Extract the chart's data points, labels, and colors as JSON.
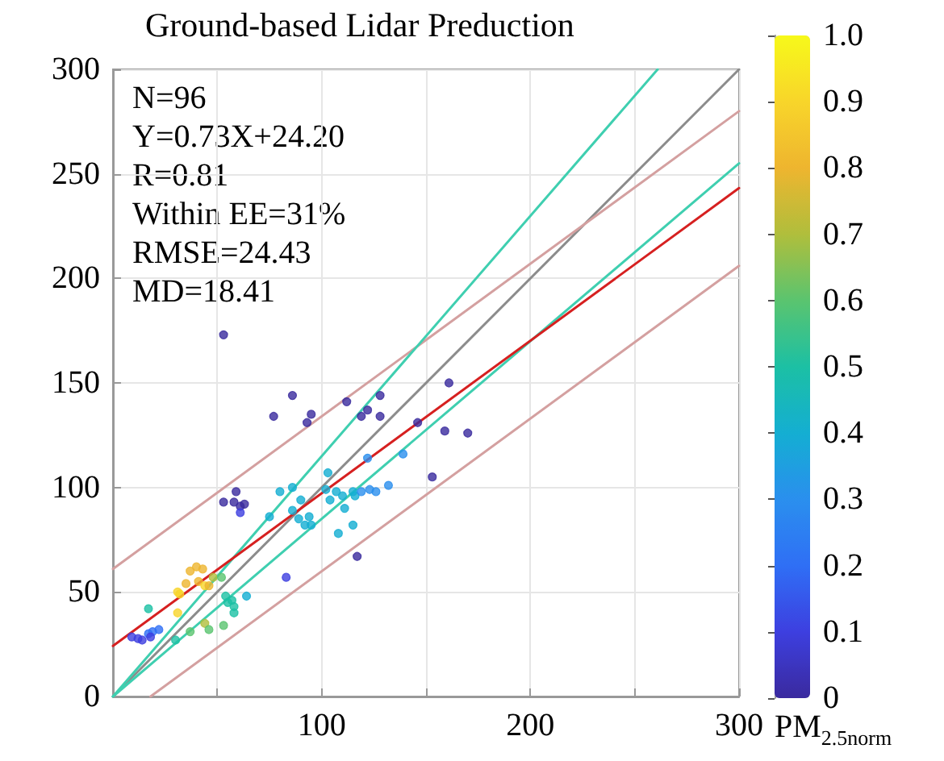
{
  "chart_data": {
    "type": "scatter",
    "title": "Ground-based Lidar Preduction",
    "clabel": "PM$_{2.5norm}$",
    "annotations": [
      "N=96",
      "Y=0.73X+24.20",
      "R=0.81",
      "Within EE=31%",
      "RMSE=24.43",
      "MD=18.41"
    ],
    "xlim": [
      0,
      300
    ],
    "ylim": [
      0,
      300
    ],
    "xticks": [
      {
        "value": 50,
        "label": null
      },
      100,
      {
        "value": 150,
        "label": null
      },
      200,
      {
        "value": 250,
        "label": null
      },
      300
    ],
    "yticks": [
      0,
      50,
      100,
      150,
      200,
      250,
      300
    ],
    "clim": [
      0,
      1
    ],
    "cticks": [
      0,
      0.1,
      0.2,
      0.3,
      0.4,
      0.5,
      0.6,
      0.7,
      0.8,
      0.9,
      {
        "value": 1,
        "label": "1.0"
      }
    ],
    "grid": true,
    "marker": "circle",
    "series": [
      {
        "type": "line",
        "color": "#8c8c8c",
        "x": [
          0,
          300
        ],
        "values": [
          0,
          300
        ],
        "marker": "none",
        "line_style": "solid"
      },
      {
        "type": "line",
        "color": "#d4a0a0",
        "x": [
          0,
          300
        ],
        "values": [
          61,
          280
        ],
        "marker": "none",
        "line_style": "solid"
      },
      {
        "type": "line",
        "color": "#d4a0a0",
        "x": [
          18,
          300
        ],
        "values": [
          0,
          206
        ],
        "marker": "none",
        "line_style": "solid"
      },
      {
        "type": "line",
        "color": "#3fcfb0",
        "x": [
          0,
          261
        ],
        "values": [
          0,
          300
        ],
        "marker": "none",
        "line_style": "solid"
      },
      {
        "type": "line",
        "color": "#3fcfb0",
        "x": [
          0,
          300
        ],
        "values": [
          0,
          255
        ],
        "marker": "none",
        "line_style": "solid"
      },
      {
        "type": "line",
        "color": "#d62020",
        "x": [
          0,
          300
        ],
        "values": [
          24.2,
          243.2
        ],
        "marker": "none",
        "line_style": "solid"
      },
      {
        "x": [
          9,
          12,
          14,
          17,
          19,
          22,
          18,
          17,
          31,
          32,
          35,
          37,
          40,
          43,
          41,
          44,
          46,
          48,
          52,
          31,
          44,
          46,
          37,
          53,
          54,
          55,
          57,
          58,
          58,
          64,
          30,
          53,
          59,
          58,
          61,
          63,
          61,
          83,
          75,
          80,
          86,
          86,
          89,
          92,
          94,
          90,
          95,
          103,
          102,
          104,
          107,
          110,
          111,
          115,
          116,
          119,
          123,
          126,
          132,
          139,
          108,
          115,
          117,
          153,
          77,
          86,
          95,
          93,
          112,
          119,
          122,
          128,
          128,
          146,
          161,
          159,
          170,
          122,
          53
        ],
        "values": [
          28.5,
          27.7,
          27,
          30,
          31,
          32,
          28.5,
          42,
          50,
          49,
          54,
          60,
          62,
          61,
          55,
          53,
          53,
          57,
          57,
          40,
          35,
          32,
          31,
          34,
          48,
          45,
          46,
          43,
          40,
          48,
          27,
          93,
          98,
          93,
          91,
          92,
          88,
          57,
          86,
          98,
          100,
          89,
          85,
          82,
          86,
          94,
          82,
          107,
          99,
          94,
          98,
          96,
          90,
          98,
          96,
          98,
          99,
          98,
          101,
          116,
          78,
          82,
          67,
          105,
          134,
          144,
          135,
          131,
          141,
          134,
          137,
          144,
          134,
          131,
          150,
          127,
          126,
          114,
          173
        ],
        "cvalues": [
          0.1,
          0.1,
          0.1,
          0.2,
          0.2,
          0.2,
          0.1,
          0.5,
          0.9,
          0.9,
          0.8,
          0.8,
          0.8,
          0.8,
          0.8,
          0.9,
          0.8,
          0.7,
          0.6,
          0.9,
          0.7,
          0.6,
          0.6,
          0.6,
          0.5,
          0.5,
          0.5,
          0.5,
          0.5,
          0.4,
          0.5,
          0,
          0,
          0,
          0,
          0,
          0.1,
          0.1,
          0.4,
          0.4,
          0.4,
          0.4,
          0.4,
          0.4,
          0.4,
          0.4,
          0.4,
          0.4,
          0.4,
          0.4,
          0.4,
          0.4,
          0.4,
          0.4,
          0.4,
          0.3,
          0.3,
          0.3,
          0.3,
          0.3,
          0.4,
          0.4,
          0,
          0,
          0,
          0,
          0,
          0,
          0,
          0,
          0,
          0,
          0,
          0,
          0,
          0,
          0,
          0.3,
          0
        ],
        "colors": [
          "#3d3fe0",
          "#3d3fe0",
          "#3d3fe0",
          "#2f6ff5",
          "#2f6ff5",
          "#2f6ff5",
          "#3d3fe0",
          "#1cc0a4",
          "#f8d52a",
          "#f8d52a",
          "#eeb52f",
          "#eeb52f",
          "#eeb52f",
          "#eeb52f",
          "#eeb52f",
          "#f8d52a",
          "#eeb52f",
          "#b0be3c",
          "#5ac46f",
          "#f8d52a",
          "#b0be3c",
          "#5ac46f",
          "#5ac46f",
          "#5ac46f",
          "#1cc0a4",
          "#1cc0a4",
          "#1cc0a4",
          "#1cc0a4",
          "#1cc0a4",
          "#14aed2",
          "#1cc0a4",
          "#3a2a9e",
          "#3a2a9e",
          "#3a2a9e",
          "#3a2a9e",
          "#3a2a9e",
          "#3d3fe0",
          "#3d3fe0",
          "#14aed2",
          "#14aed2",
          "#14aed2",
          "#14aed2",
          "#14aed2",
          "#14aed2",
          "#14aed2",
          "#14aed2",
          "#14aed2",
          "#14aed2",
          "#14aed2",
          "#14aed2",
          "#14aed2",
          "#14aed2",
          "#14aed2",
          "#14aed2",
          "#14aed2",
          "#2a8fee",
          "#2a8fee",
          "#2a8fee",
          "#2a8fee",
          "#2a8fee",
          "#14aed2",
          "#14aed2",
          "#3a2a9e",
          "#3a2a9e",
          "#3a2a9e",
          "#3a2a9e",
          "#3a2a9e",
          "#3a2a9e",
          "#3a2a9e",
          "#3a2a9e",
          "#3a2a9e",
          "#3a2a9e",
          "#3a2a9e",
          "#3a2a9e",
          "#3a2a9e",
          "#3a2a9e",
          "#3a2a9e",
          "#2a8fee",
          "#3a2a9e"
        ]
      }
    ]
  }
}
